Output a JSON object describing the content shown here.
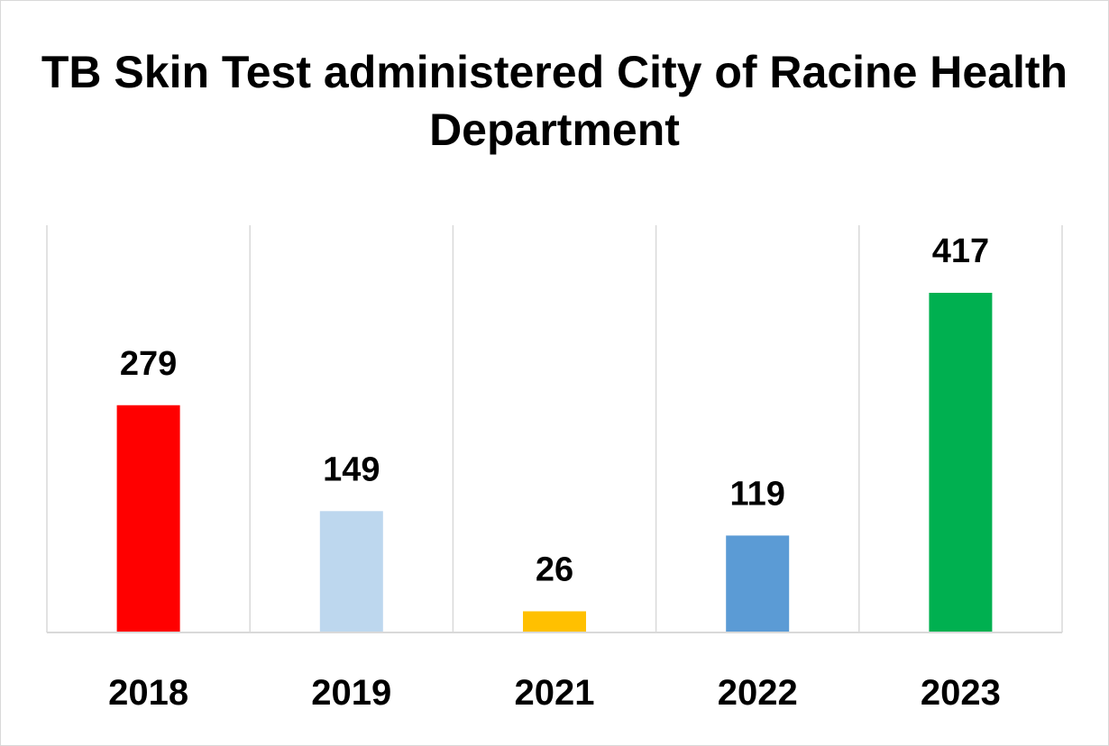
{
  "chart_data": {
    "type": "bar",
    "title": "TB Skin Test administered City of Racine Health Department",
    "xlabel": "",
    "ylabel": "",
    "categories": [
      "2018",
      "2019",
      "2021",
      "2022",
      "2023"
    ],
    "values": [
      279,
      149,
      26,
      119,
      417
    ],
    "data_labels": [
      "279",
      "149",
      "26",
      "119",
      "417"
    ],
    "colors": [
      "#ff0000",
      "#bdd7ee",
      "#ffc000",
      "#5b9bd5",
      "#00b050"
    ],
    "ylim": [
      0,
      500
    ],
    "grid": "vertical-category-separators",
    "legend": "none"
  }
}
